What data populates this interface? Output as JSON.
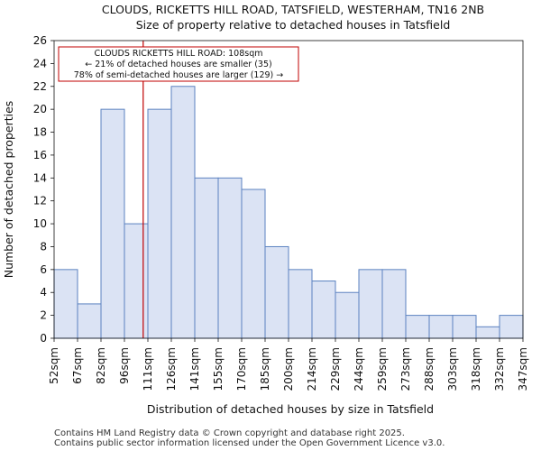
{
  "chart_data": {
    "type": "bar",
    "title": "CLOUDS, RICKETTS HILL ROAD, TATSFIELD, WESTERHAM, TN16 2NB",
    "subtitle": "Size of property relative to detached houses in Tatsfield",
    "xlabel": "Distribution of detached houses by size in Tatsfield",
    "ylabel": "Number of detached properties",
    "bin_edges": [
      52,
      67,
      82,
      96,
      111,
      126,
      141,
      155,
      170,
      185,
      200,
      214,
      229,
      244,
      259,
      273,
      288,
      303,
      318,
      332,
      347
    ],
    "xtick_labels": [
      "52sqm",
      "67sqm",
      "82sqm",
      "96sqm",
      "111sqm",
      "126sqm",
      "141sqm",
      "155sqm",
      "170sqm",
      "185sqm",
      "200sqm",
      "214sqm",
      "229sqm",
      "244sqm",
      "259sqm",
      "273sqm",
      "288sqm",
      "303sqm",
      "318sqm",
      "332sqm",
      "347sqm"
    ],
    "values": [
      6,
      3,
      20,
      10,
      20,
      22,
      14,
      14,
      13,
      8,
      6,
      5,
      4,
      6,
      6,
      2,
      2,
      2,
      1,
      2
    ],
    "ylim": [
      0,
      26
    ],
    "yticks": [
      0,
      2,
      4,
      6,
      8,
      10,
      12,
      14,
      16,
      18,
      20,
      22,
      24,
      26
    ],
    "bar_color": "#dbe3f4",
    "bar_edge_color": "#5b82c0",
    "marker": {
      "x": 108,
      "color": "#c00000"
    },
    "annotation": {
      "lines": [
        "CLOUDS RICKETTS HILL ROAD: 108sqm",
        "← 21% of detached houses are smaller (35)",
        "78% of semi-detached houses are larger (129) →"
      ],
      "border_color": "#c00000"
    },
    "grid": false
  },
  "footer": {
    "line1": "Contains HM Land Registry data © Crown copyright and database right 2025.",
    "line2": "Contains public sector information licensed under the Open Government Licence v3.0."
  }
}
